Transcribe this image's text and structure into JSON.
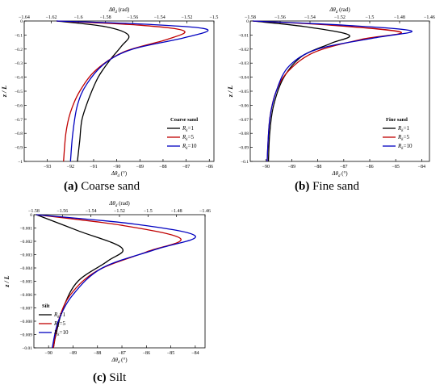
{
  "captions": [
    {
      "label": "(a)",
      "text": "Coarse sand"
    },
    {
      "label": "(b)",
      "text": "Fine sand"
    },
    {
      "label": "(c)",
      "text": "Silt"
    }
  ],
  "colors": {
    "Rk1": "#000000",
    "Rk5": "#c00000",
    "Rk10": "#0000c0"
  },
  "chart_data": [
    {
      "type": "line",
      "panel": "a",
      "xlabel": "Δθ_d (°)",
      "x2label": "Δθ_d (rad)",
      "ylabel": "z / L",
      "legend_title": "Coarse sand",
      "legend_position": "bottom-right",
      "xlim": [
        -94,
        -85.8
      ],
      "xticks": [
        -93,
        -92,
        -91,
        -90,
        -89,
        -88,
        -87,
        -86
      ],
      "x2lim": [
        -1.64,
        -1.5
      ],
      "x2ticks": [
        -1.64,
        -1.62,
        -1.6,
        -1.58,
        -1.56,
        -1.54,
        -1.52,
        -1.5
      ],
      "ylim": [
        -1,
        0
      ],
      "yticks": [
        0,
        -0.1,
        -0.2,
        -0.3,
        -0.4,
        -0.5,
        -0.6,
        -0.7,
        -0.8,
        -0.9,
        -1
      ],
      "ytick_labels": [
        "0",
        "-0.1",
        "-0.2",
        "-0.3",
        "-0.4",
        "-0.5",
        "-0.6",
        "-0.7",
        "-0.8",
        "-0.9",
        "-1"
      ],
      "series": [
        {
          "name": "R_k=1",
          "sub": "k",
          "eq": "=1",
          "color_key": "Rk1",
          "points": [
            [
              -92.6,
              0
            ],
            [
              -90.5,
              -0.04
            ],
            [
              -89.5,
              -0.1
            ],
            [
              -89.8,
              -0.18
            ],
            [
              -90.3,
              -0.28
            ],
            [
              -90.8,
              -0.4
            ],
            [
              -91.2,
              -0.55
            ],
            [
              -91.5,
              -0.7
            ],
            [
              -91.6,
              -0.85
            ],
            [
              -91.7,
              -1
            ]
          ]
        },
        {
          "name": "R_k=5",
          "sub": "k",
          "eq": "=5",
          "color_key": "Rk5",
          "points": [
            [
              -92.6,
              0
            ],
            [
              -89,
              -0.03
            ],
            [
              -87.1,
              -0.07
            ],
            [
              -87.8,
              -0.13
            ],
            [
              -89.7,
              -0.22
            ],
            [
              -90.9,
              -0.35
            ],
            [
              -91.6,
              -0.5
            ],
            [
              -92,
              -0.65
            ],
            [
              -92.2,
              -0.8
            ],
            [
              -92.3,
              -1
            ]
          ]
        },
        {
          "name": "R_k=10",
          "sub": "k",
          "eq": "=10",
          "color_key": "Rk10",
          "points": [
            [
              -92.6,
              0
            ],
            [
              -88.5,
              -0.025
            ],
            [
              -86.1,
              -0.06
            ],
            [
              -87.1,
              -0.12
            ],
            [
              -89.3,
              -0.2
            ],
            [
              -90.5,
              -0.3
            ],
            [
              -91.3,
              -0.45
            ],
            [
              -91.7,
              -0.6
            ],
            [
              -91.9,
              -0.8
            ],
            [
              -92,
              -1
            ]
          ]
        }
      ]
    },
    {
      "type": "line",
      "panel": "b",
      "xlabel": "Δθ_d (°)",
      "x2label": "Δθ_d (rad)",
      "ylabel": "z / L",
      "legend_title": "Fine sand",
      "legend_position": "bottom-right",
      "xlim": [
        -90.6,
        -83.7
      ],
      "xticks": [
        -90,
        -89,
        -88,
        -87,
        -86,
        -85,
        -84
      ],
      "x2lim": [
        -1.58,
        -1.46
      ],
      "x2ticks": [
        -1.58,
        -1.56,
        -1.54,
        -1.52,
        -1.5,
        -1.48,
        -1.46
      ],
      "ylim": [
        -0.1,
        0
      ],
      "yticks": [
        0,
        -0.01,
        -0.02,
        -0.03,
        -0.04,
        -0.05,
        -0.06,
        -0.07,
        -0.08,
        -0.09,
        -0.1
      ],
      "ytick_labels": [
        "0",
        "-0.01",
        "-0.02",
        "-0.03",
        "-0.04",
        "-0.05",
        "-0.06",
        "-0.07",
        "-0.08",
        "-0.09",
        "-0.1"
      ],
      "series": [
        {
          "name": "R_k=1",
          "sub": "k",
          "eq": "=1",
          "color_key": "Rk1",
          "points": [
            [
              -90.5,
              0
            ],
            [
              -88.5,
              -0.004
            ],
            [
              -86.8,
              -0.01
            ],
            [
              -87.5,
              -0.016
            ],
            [
              -88.6,
              -0.025
            ],
            [
              -89.3,
              -0.04
            ],
            [
              -89.7,
              -0.06
            ],
            [
              -89.85,
              -0.08
            ],
            [
              -89.9,
              -0.1
            ]
          ]
        },
        {
          "name": "R_k=5",
          "sub": "k",
          "eq": "=5",
          "color_key": "Rk5",
          "points": [
            [
              -90.5,
              0
            ],
            [
              -87.5,
              -0.003
            ],
            [
              -84.8,
              -0.008
            ],
            [
              -86.3,
              -0.013
            ],
            [
              -88.1,
              -0.022
            ],
            [
              -89.1,
              -0.035
            ],
            [
              -89.6,
              -0.05
            ],
            [
              -89.85,
              -0.07
            ],
            [
              -89.95,
              -0.1
            ]
          ]
        },
        {
          "name": "R_k=10",
          "sub": "k",
          "eq": "=10",
          "color_key": "Rk10",
          "points": [
            [
              -90.5,
              0
            ],
            [
              -87,
              -0.003
            ],
            [
              -84.4,
              -0.007
            ],
            [
              -85.8,
              -0.012
            ],
            [
              -88,
              -0.02
            ],
            [
              -89.1,
              -0.032
            ],
            [
              -89.6,
              -0.05
            ],
            [
              -89.85,
              -0.07
            ],
            [
              -89.95,
              -0.1
            ]
          ]
        }
      ]
    },
    {
      "type": "line",
      "panel": "c",
      "xlabel": "Δθ_d (°)",
      "x2label": "Δθ_d (rad)",
      "ylabel": "z / L",
      "legend_title": "Silt",
      "legend_position": "bottom-left",
      "xlim": [
        -90.6,
        -83.6
      ],
      "xticks": [
        -90,
        -89,
        -88,
        -87,
        -86,
        -85,
        -84
      ],
      "x2lim": [
        -1.58,
        -1.46
      ],
      "x2ticks": [
        -1.58,
        -1.56,
        -1.54,
        -1.52,
        -1.5,
        -1.48,
        -1.46
      ],
      "ylim": [
        -0.01,
        0
      ],
      "yticks": [
        0,
        -0.001,
        -0.002,
        -0.003,
        -0.004,
        -0.005,
        -0.006,
        -0.007,
        -0.008,
        -0.009,
        -0.01
      ],
      "ytick_labels": [
        "0",
        "-0.001",
        "-0.002",
        "-0.003",
        "-0.004",
        "-0.005",
        "-0.006",
        "-0.007",
        "-0.008",
        "-0.009",
        "-0.01"
      ],
      "series": [
        {
          "name": "R_k=1",
          "sub": "k",
          "eq": "=1",
          "color_key": "Rk1",
          "points": [
            [
              -90.5,
              0
            ],
            [
              -88.8,
              -0.0012
            ],
            [
              -87,
              -0.0025
            ],
            [
              -87.6,
              -0.0035
            ],
            [
              -88.8,
              -0.005
            ],
            [
              -89.4,
              -0.007
            ],
            [
              -89.7,
              -0.009
            ],
            [
              -89.8,
              -0.01
            ]
          ]
        },
        {
          "name": "R_k=5",
          "sub": "k",
          "eq": "=5",
          "color_key": "Rk5",
          "points": [
            [
              -90.5,
              0
            ],
            [
              -87,
              -0.0008
            ],
            [
              -84.6,
              -0.0018
            ],
            [
              -86,
              -0.0028
            ],
            [
              -88,
              -0.0042
            ],
            [
              -89.1,
              -0.006
            ],
            [
              -89.6,
              -0.008
            ],
            [
              -89.8,
              -0.01
            ]
          ]
        },
        {
          "name": "R_k=10",
          "sub": "k",
          "eq": "=10",
          "color_key": "Rk10",
          "points": [
            [
              -90.5,
              0
            ],
            [
              -86.5,
              -0.0007
            ],
            [
              -84,
              -0.0016
            ],
            [
              -85.6,
              -0.0026
            ],
            [
              -87.8,
              -0.004
            ],
            [
              -89,
              -0.006
            ],
            [
              -89.6,
              -0.008
            ],
            [
              -89.85,
              -0.01
            ]
          ]
        }
      ]
    }
  ]
}
